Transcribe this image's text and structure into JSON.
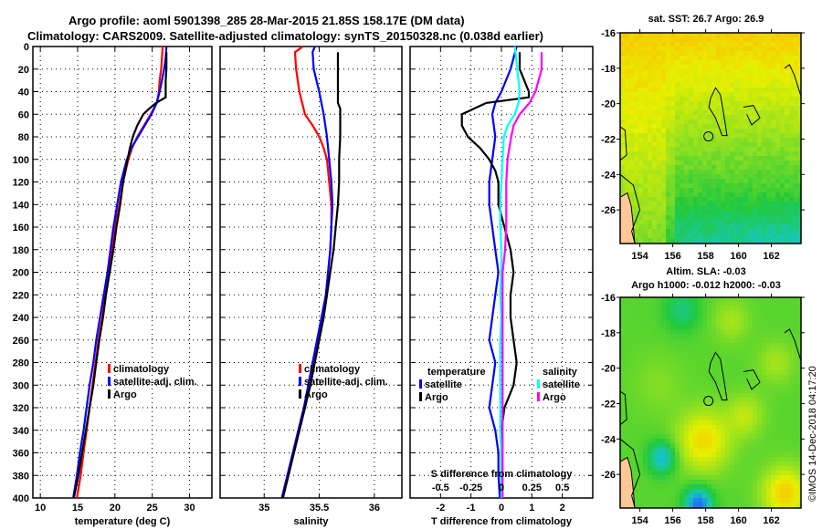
{
  "title": {
    "line1": "Argo profile: aoml 5901398_285 28-Mar-2015 21.85S 158.17E (DM data)",
    "line2": "Climatology: CARS2009. Satellite-adjusted climatology: synTS_20150328.nc (0.038d earlier)"
  },
  "colors": {
    "climatology": "#ff0000",
    "satellite": "#0000ff",
    "argo": "#000000",
    "sat_salinity": "#00ffff",
    "argo_salinity": "#ff00ff"
  },
  "chart_data": [
    {
      "type": "line",
      "name": "temperature-profile",
      "xlabel": "temperature (deg C)",
      "ylabel": "",
      "xlim": [
        9,
        33
      ],
      "ylim": [
        400,
        0
      ],
      "xticks": [
        10,
        15,
        20,
        25,
        30
      ],
      "yticks": [
        0,
        20,
        40,
        60,
        80,
        100,
        120,
        140,
        160,
        180,
        200,
        220,
        240,
        260,
        280,
        300,
        320,
        340,
        360,
        380,
        400
      ],
      "grid": true,
      "legend": {
        "position": "lower-right",
        "entries": [
          "climatology",
          "satellite-adj. clim.",
          "Argo"
        ]
      },
      "series": [
        {
          "name": "climatology",
          "color_key": "climatology",
          "depth": [
            0,
            10,
            20,
            30,
            40,
            50,
            60,
            70,
            80,
            90,
            100,
            120,
            140,
            160,
            180,
            200,
            220,
            240,
            260,
            280,
            300,
            320,
            340,
            360,
            380,
            400
          ],
          "values": [
            26.4,
            26.3,
            26.2,
            26.0,
            25.9,
            25.6,
            24.8,
            23.9,
            23.0,
            22.3,
            21.8,
            21.1,
            20.6,
            20.0,
            19.6,
            19.2,
            18.7,
            18.3,
            17.8,
            17.4,
            17.0,
            16.6,
            16.2,
            15.8,
            15.4,
            14.9
          ]
        },
        {
          "name": "satellite-adj. clim.",
          "color_key": "satellite",
          "depth": [
            0,
            10,
            20,
            30,
            40,
            50,
            60,
            70,
            80,
            90,
            100,
            120,
            140,
            160,
            180,
            200,
            220,
            240,
            260,
            280,
            300,
            320,
            340,
            360,
            380,
            400
          ],
          "values": [
            26.9,
            26.8,
            26.6,
            26.3,
            26.0,
            25.6,
            24.9,
            24.0,
            23.1,
            22.2,
            21.6,
            20.8,
            20.3,
            19.8,
            19.4,
            19.0,
            18.5,
            18.0,
            17.5,
            17.1,
            16.6,
            16.2,
            15.8,
            15.3,
            14.9,
            14.4
          ]
        },
        {
          "name": "Argo",
          "color_key": "argo",
          "depth": [
            5,
            20,
            30,
            40,
            45,
            50,
            55,
            60,
            70,
            80,
            90,
            100,
            120,
            140,
            160,
            180,
            200,
            220,
            240,
            260,
            280,
            300,
            320,
            340,
            360,
            380,
            400
          ],
          "values": [
            26.9,
            26.9,
            26.8,
            26.8,
            26.8,
            25.5,
            24.6,
            23.8,
            23.0,
            22.4,
            22.0,
            21.7,
            21.1,
            20.7,
            20.2,
            19.8,
            19.3,
            18.8,
            18.4,
            17.9,
            17.5,
            17.1,
            16.6,
            16.1,
            15.6,
            15.1,
            14.5
          ]
        }
      ]
    },
    {
      "type": "line",
      "name": "salinity-profile",
      "xlabel": "salinity",
      "ylabel": "",
      "xlim": [
        34.6,
        36.25
      ],
      "ylim": [
        400,
        0
      ],
      "xticks": [
        35,
        35.5,
        36
      ],
      "xtick_labels": [
        "35",
        "35.5",
        "36"
      ],
      "grid": true,
      "legend": {
        "position": "lower-right",
        "entries": [
          "climatology",
          "satellite-adj. clim.",
          "Argo"
        ]
      },
      "series": [
        {
          "name": "climatology",
          "color_key": "climatology",
          "depth": [
            0,
            5,
            20,
            40,
            60,
            70,
            80,
            90,
            100,
            120,
            140,
            160,
            180,
            200,
            220,
            240,
            260,
            280,
            300,
            320,
            340,
            360,
            380,
            400
          ],
          "values": [
            35.35,
            35.28,
            35.29,
            35.32,
            35.37,
            35.44,
            35.5,
            35.54,
            35.57,
            35.59,
            35.61,
            35.61,
            35.6,
            35.58,
            35.56,
            35.53,
            35.49,
            35.45,
            35.41,
            35.37,
            35.32,
            35.27,
            35.22,
            35.17
          ]
        },
        {
          "name": "satellite-adj. clim.",
          "color_key": "satellite",
          "depth": [
            0,
            5,
            20,
            40,
            60,
            80,
            100,
            120,
            140,
            160,
            180,
            200,
            220,
            240,
            260,
            280,
            300,
            320,
            340,
            360,
            380,
            400
          ],
          "values": [
            35.46,
            35.44,
            35.45,
            35.5,
            35.54,
            35.57,
            35.59,
            35.61,
            35.62,
            35.61,
            35.6,
            35.58,
            35.56,
            35.52,
            35.48,
            35.44,
            35.4,
            35.36,
            35.31,
            35.26,
            35.21,
            35.16
          ]
        },
        {
          "name": "Argo",
          "color_key": "argo",
          "depth": [
            5,
            20,
            40,
            50,
            55,
            60,
            80,
            100,
            120,
            140,
            160,
            180,
            200,
            220,
            240,
            260,
            280,
            300,
            320,
            340,
            360,
            380,
            400
          ],
          "values": [
            35.67,
            35.67,
            35.67,
            35.67,
            35.69,
            35.69,
            35.69,
            35.68,
            35.68,
            35.67,
            35.65,
            35.63,
            35.6,
            35.57,
            35.54,
            35.5,
            35.46,
            35.42,
            35.37,
            35.32,
            35.27,
            35.22,
            35.17
          ]
        }
      ]
    },
    {
      "type": "line",
      "name": "difference-profile",
      "xlabel": "T difference from climatology",
      "ylabel": "",
      "xlim": [
        -3,
        3
      ],
      "ylim": [
        400,
        0
      ],
      "xticks": [
        -2,
        -1,
        0,
        1,
        2
      ],
      "secondary_xlabel": "S difference from climatology",
      "secondary_xticks": [
        -0.5,
        -0.25,
        0,
        0.25,
        0.5
      ],
      "secondary_xtick_labels": [
        "-0.5",
        "-0.25",
        "0",
        "0.25",
        "0.5"
      ],
      "grid": true,
      "legend": {
        "position": "middle",
        "entries": [
          "temperature",
          "satellite",
          "Argo",
          "salinity",
          "satellite",
          "Argo"
        ]
      },
      "series": [
        {
          "name": "temperature satellite",
          "color_key": "satellite",
          "depth": [
            0,
            10,
            20,
            40,
            50,
            60,
            80,
            100,
            120,
            140,
            160,
            180,
            200,
            220,
            240,
            260,
            280,
            300,
            320,
            340,
            360,
            380,
            400
          ],
          "values": [
            0.5,
            0.4,
            0.3,
            0.0,
            -0.2,
            -0.3,
            -0.2,
            -0.3,
            -0.4,
            -0.4,
            -0.3,
            -0.2,
            -0.1,
            -0.2,
            -0.3,
            -0.4,
            -0.2,
            -0.3,
            -0.4,
            -0.2,
            -0.1,
            -0.1,
            -0.05
          ]
        },
        {
          "name": "temperature Argo",
          "color_key": "argo",
          "depth": [
            5,
            20,
            40,
            45,
            50,
            60,
            70,
            80,
            90,
            100,
            110,
            120,
            140,
            160,
            180,
            200,
            220,
            240,
            260,
            280,
            300,
            320,
            340,
            360,
            380,
            400
          ],
          "values": [
            0.6,
            0.6,
            0.9,
            0.9,
            -0.5,
            -1.3,
            -1.3,
            -1.1,
            -0.7,
            -0.4,
            -0.2,
            -0.1,
            -0.1,
            0.1,
            0.3,
            0.4,
            0.3,
            0.3,
            0.4,
            0.5,
            0.4,
            0.1,
            0.0,
            0.0,
            0.0,
            0.0
          ]
        },
        {
          "name": "salinity satellite",
          "color_key": "sat_salinity",
          "depth": [
            0,
            10,
            20,
            40,
            50,
            60,
            70,
            80,
            100,
            120,
            140,
            160,
            180,
            200,
            220,
            240,
            260,
            280,
            300,
            320,
            340,
            360,
            380,
            400
          ],
          "values": [
            0.11,
            0.12,
            0.13,
            0.15,
            0.14,
            0.11,
            0.05,
            0.02,
            0.01,
            0.0,
            -0.01,
            -0.01,
            0.0,
            0.0,
            -0.01,
            0.0,
            -0.01,
            -0.01,
            -0.01,
            -0.01,
            -0.01,
            0.0,
            0.0,
            0.0
          ]
        },
        {
          "name": "salinity Argo",
          "color_key": "argo_salinity",
          "depth": [
            5,
            20,
            40,
            50,
            60,
            70,
            80,
            100,
            120,
            140,
            160,
            180,
            200,
            220,
            240,
            260,
            280,
            300,
            320,
            340,
            360,
            380,
            400
          ],
          "values": [
            0.33,
            0.33,
            0.28,
            0.23,
            0.15,
            0.1,
            0.08,
            0.05,
            0.04,
            0.04,
            0.04,
            0.03,
            0.01,
            0.01,
            0.01,
            0.01,
            0.01,
            0.01,
            0.01,
            0.01,
            0.01,
            0.01,
            0.01
          ]
        }
      ]
    },
    {
      "type": "heatmap",
      "name": "sst-map",
      "title": "sat. SST: 26.7 Argo: 26.9",
      "xlim": [
        152.8,
        163.8
      ],
      "ylim": [
        -27.9,
        -16
      ],
      "xticks": [
        154,
        156,
        158,
        160,
        162
      ],
      "yticks": [
        -16,
        -18,
        -20,
        -22,
        -24,
        -26
      ],
      "argo_position": {
        "lon": 158.17,
        "lat": -21.85
      }
    },
    {
      "type": "heatmap",
      "name": "sla-map",
      "title": "Altim. SLA: -0.03",
      "subtitle": "Argo h1000: -0.012 h2000: -0.03",
      "xlim": [
        152.8,
        163.8
      ],
      "ylim": [
        -27.9,
        -16
      ],
      "xticks": [
        154,
        156,
        158,
        160,
        162
      ],
      "yticks": [
        -16,
        -18,
        -20,
        -22,
        -24,
        -26
      ],
      "argo_position": {
        "lon": 158.17,
        "lat": -21.85
      }
    }
  ],
  "credit": "©IMOS 14-Dec-2018 04:17:20"
}
